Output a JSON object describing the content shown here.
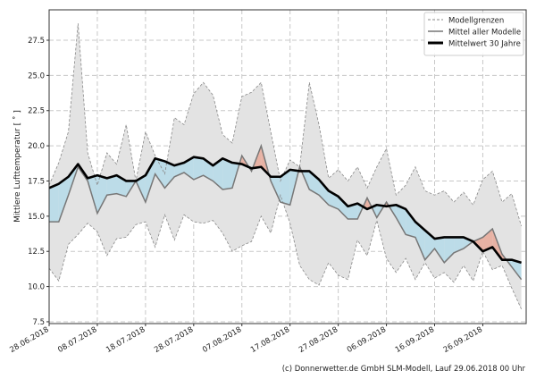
{
  "chart_data": {
    "type": "area",
    "title": "",
    "xlabel": "",
    "ylabel": "Mittlere Lufttemperatur [ ˚ ]",
    "ylim": [
      7.37,
      29.66
    ],
    "yticks": [
      "7.5",
      "10.0",
      "12.5",
      "15.0",
      "17.5",
      "20.0",
      "22.5",
      "25.0",
      "27.5"
    ],
    "xtick_labels": [
      "28.06.2018",
      "08.07.2018",
      "18.07.2018",
      "28.07.2018",
      "07.08.2018",
      "17.08.2018",
      "27.08.2018",
      "06.09.2018",
      "16.09.2018",
      "26.09.2018"
    ],
    "grid": true,
    "legend_position": "top-right",
    "x": [
      "28.06",
      "30.06",
      "02.07",
      "04.07",
      "06.07",
      "08.07",
      "10.07",
      "12.07",
      "14.07",
      "16.07",
      "18.07",
      "20.07",
      "22.07",
      "24.07",
      "26.07",
      "28.07",
      "30.07",
      "01.08",
      "03.08",
      "05.08",
      "07.08",
      "09.08",
      "11.08",
      "13.08",
      "15.08",
      "17.08",
      "19.08",
      "21.08",
      "23.08",
      "25.08",
      "27.08",
      "29.08",
      "31.08",
      "02.09",
      "04.09",
      "06.09",
      "08.09",
      "10.09",
      "12.09",
      "14.09",
      "16.09",
      "18.09",
      "20.09",
      "22.09",
      "24.09",
      "26.09",
      "28.09",
      "30.09",
      "02.10",
      "04.10"
    ],
    "series": [
      {
        "name": "Modellgrenzen",
        "role": "upper",
        "color": "#888888",
        "values": [
          17.2,
          18.8,
          21,
          28.7,
          19.5,
          17.2,
          19.5,
          18.7,
          21.5,
          17.5,
          21,
          19.3,
          18,
          22,
          21.5,
          23.7,
          24.5,
          23.6,
          20.8,
          20.2,
          23.5,
          23.8,
          24.5,
          21,
          17.5,
          19,
          18.5,
          24.5,
          21.5,
          17.7,
          18.3,
          17.5,
          18.5,
          17,
          18.5,
          19.8,
          16.5,
          17.2,
          18.5,
          16.8,
          16.5,
          16.8,
          16,
          16.7,
          15.8,
          17.6,
          18.2,
          16,
          16.6,
          14.3
        ]
      },
      {
        "role": "lower",
        "color": "#888888",
        "values": [
          11.3,
          10.4,
          13,
          13.7,
          14.5,
          13.9,
          12.2,
          13.4,
          13.5,
          14.4,
          14.6,
          12.8,
          15.1,
          13.3,
          15.1,
          14.6,
          14.5,
          14.7,
          13.8,
          12.5,
          12.9,
          13.2,
          15,
          13.8,
          16.5,
          14.5,
          11.5,
          10.5,
          10.1,
          11.7,
          10.8,
          10.5,
          13.3,
          12.2,
          14.7,
          12,
          11,
          12,
          10.5,
          11.7,
          10.6,
          11,
          10.3,
          11.5,
          10.4,
          12.5,
          11.2,
          11.5,
          9.9,
          8.4
        ]
      },
      {
        "name": "Mittel aller Modelle",
        "color": "#777777",
        "values": [
          14.6,
          14.6,
          16.5,
          18.5,
          17.5,
          15.2,
          16.5,
          16.6,
          16.4,
          17.5,
          16,
          18,
          17,
          17.8,
          18.1,
          17.6,
          17.9,
          17.5,
          16.9,
          17,
          19.3,
          18.2,
          20,
          17.5,
          16,
          15.8,
          18.5,
          16.9,
          16.5,
          15.8,
          15.5,
          14.8,
          14.8,
          16.3,
          14.9,
          16,
          14.9,
          13.7,
          13.5,
          11.9,
          12.7,
          11.7,
          12.4,
          12.7,
          13.2,
          13.5,
          14.1,
          12.3,
          11.4,
          10.5
        ]
      },
      {
        "name": "Mittelwert 30 Jahre",
        "color": "#000000",
        "values": [
          17,
          17.3,
          17.8,
          18.7,
          17.7,
          17.9,
          17.7,
          17.9,
          17.5,
          17.5,
          17.9,
          19.1,
          18.9,
          18.6,
          18.8,
          19.2,
          19.1,
          18.6,
          19.1,
          18.8,
          18.7,
          18.4,
          18.5,
          17.8,
          17.8,
          18.3,
          18.2,
          18.2,
          17.6,
          16.8,
          16.4,
          15.7,
          15.9,
          15.5,
          15.8,
          15.7,
          15.8,
          15.5,
          14.6,
          14,
          13.4,
          13.5,
          13.5,
          13.5,
          13.2,
          12.5,
          12.8,
          11.9,
          11.9,
          11.7
        ]
      }
    ],
    "colors": {
      "band": "#e3e3e3",
      "below_mean": "#bcdce8",
      "above_mean": "#e8b2a4"
    }
  },
  "legend": {
    "items": [
      "Modellgrenzen",
      "Mittel aller Modelle",
      "Mittelwert 30 Jahre"
    ]
  },
  "footer": "(c) Donnerwetter.de GmbH SLM-Modell, Lauf 29.06.2018 00 Uhr"
}
